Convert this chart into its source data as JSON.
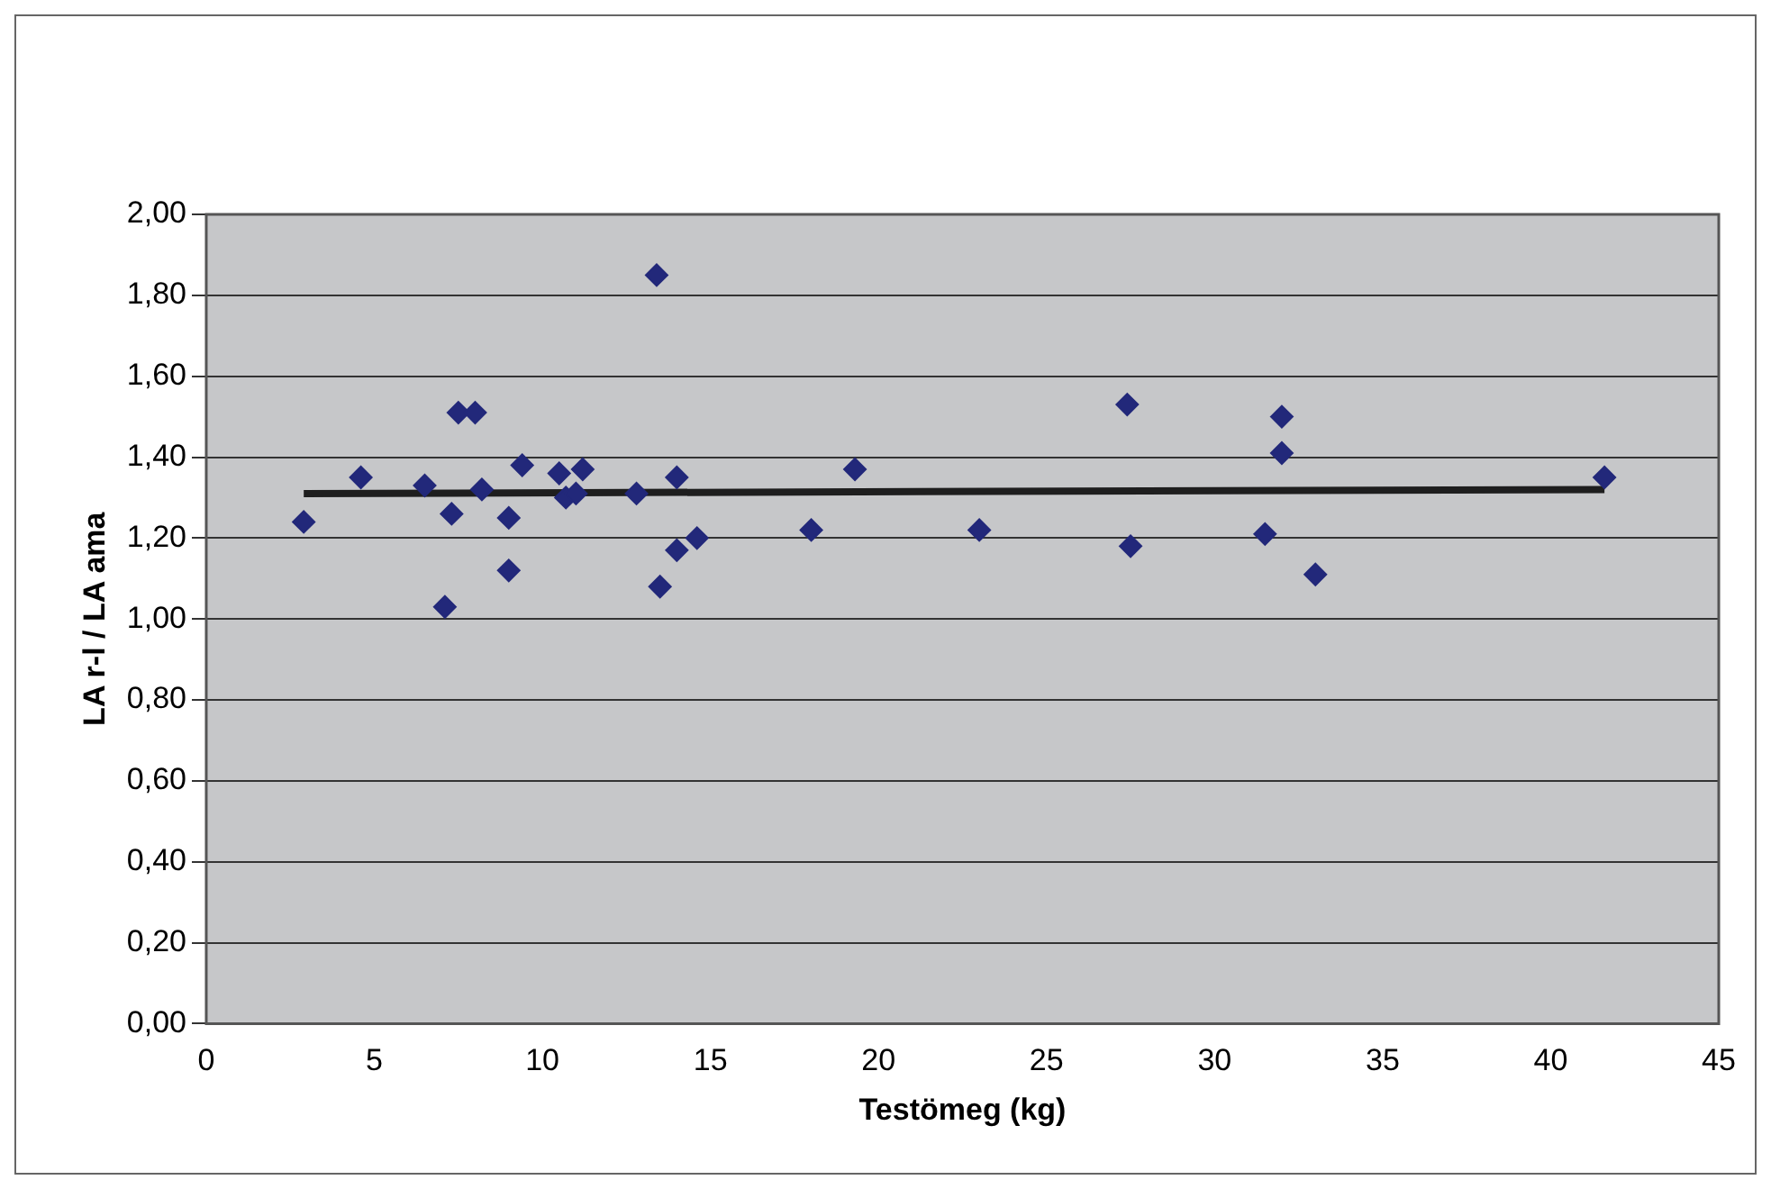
{
  "chart_data": {
    "type": "scatter",
    "xlabel": "Testömeg (kg)",
    "ylabel": "LA r-l / LA ama",
    "xlim": [
      0,
      45
    ],
    "xticks": [
      0,
      5,
      10,
      15,
      20,
      25,
      30,
      35,
      40,
      45
    ],
    "ylim": [
      0,
      2
    ],
    "yticks": [
      {
        "value": 0,
        "label": "0,00"
      },
      {
        "value": 0.2,
        "label": "0,20"
      },
      {
        "value": 0.4,
        "label": "0,40"
      },
      {
        "value": 0.6,
        "label": "0,60"
      },
      {
        "value": 0.8,
        "label": "0,80"
      },
      {
        "value": 1,
        "label": "1,00"
      },
      {
        "value": 1.2,
        "label": "1,20"
      },
      {
        "value": 1.4,
        "label": "1,40"
      },
      {
        "value": 1.6,
        "label": "1,60"
      },
      {
        "value": 1.8,
        "label": "1,80"
      },
      {
        "value": 2,
        "label": "2,00"
      }
    ],
    "grid": "y",
    "legend": false,
    "marker": "diamond",
    "series": [
      {
        "type": "scatter",
        "color": "#22287a",
        "x": [
          2.9,
          4.6,
          6.5,
          7.1,
          7.3,
          7.5,
          8.0,
          8.2,
          9.0,
          9.0,
          9.4,
          10.5,
          10.7,
          11.0,
          11.2,
          12.8,
          13.4,
          13.5,
          14.0,
          14.0,
          14.6,
          18.0,
          19.3,
          23.0,
          27.4,
          27.5,
          31.5,
          32.0,
          32.0,
          33.0,
          41.6
        ],
        "values": [
          1.24,
          1.35,
          1.33,
          1.03,
          1.26,
          1.51,
          1.51,
          1.32,
          1.25,
          1.12,
          1.38,
          1.36,
          1.3,
          1.31,
          1.37,
          1.31,
          1.85,
          1.08,
          1.35,
          1.17,
          1.2,
          1.22,
          1.37,
          1.22,
          1.53,
          1.18,
          1.21,
          1.5,
          1.41,
          1.11,
          1.35
        ]
      },
      {
        "type": "line",
        "color": "#1e1e1e",
        "marker": "none",
        "x": [
          2.9,
          41.6
        ],
        "values": [
          1.31,
          1.32
        ]
      }
    ]
  }
}
